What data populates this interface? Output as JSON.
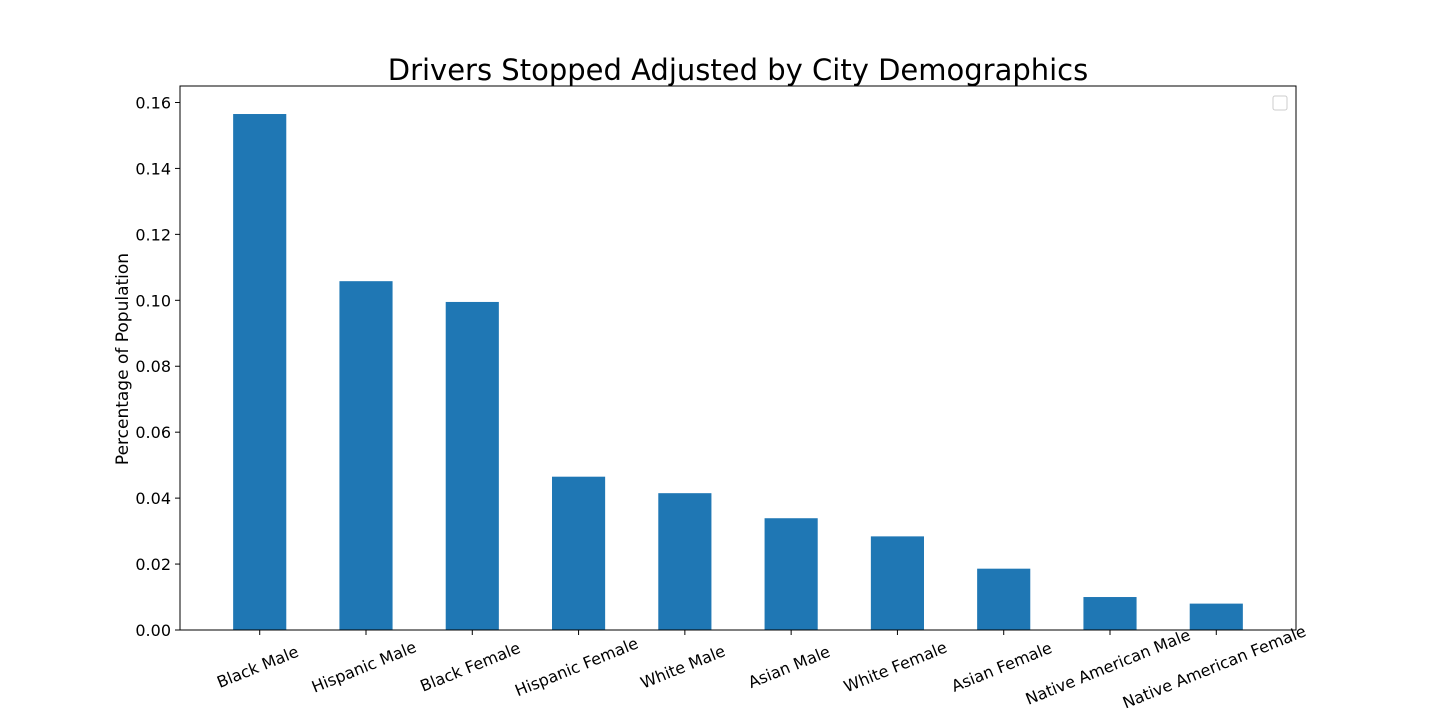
{
  "chart_data": {
    "type": "bar",
    "title": "Drivers Stopped Adjusted by City Demographics",
    "xlabel": "",
    "ylabel": "Percentage of Population",
    "categories": [
      "Black Male",
      "Hispanic Male",
      "Black Female",
      "Hispanic Female",
      "White Male",
      "Asian Male",
      "White Female",
      "Asian Female",
      "Native American Male",
      "Native American Female"
    ],
    "values": [
      0.1565,
      0.1058,
      0.0995,
      0.0465,
      0.0415,
      0.0339,
      0.0284,
      0.0186,
      0.01,
      0.008
    ],
    "ylim": [
      0,
      0.165
    ],
    "yticks": [
      0.0,
      0.02,
      0.04,
      0.06,
      0.08,
      0.1,
      0.12,
      0.14,
      0.16
    ],
    "ytick_labels": [
      "0.00",
      "0.02",
      "0.04",
      "0.06",
      "0.08",
      "0.10",
      "0.12",
      "0.14",
      "0.16"
    ],
    "bar_color": "#1f77b4",
    "grid": false,
    "legend": "top-right",
    "legend_entries": []
  }
}
